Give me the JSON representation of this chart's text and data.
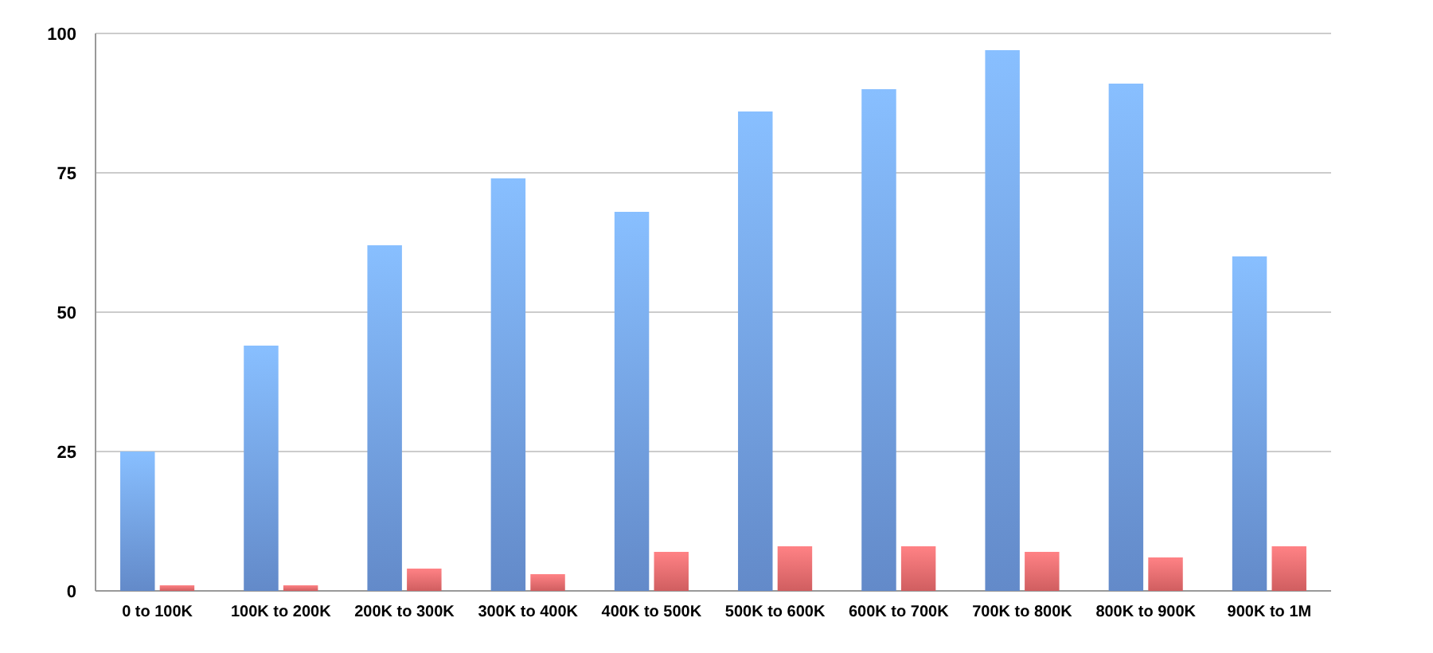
{
  "chart_data": {
    "type": "bar",
    "categories": [
      "0 to 100K",
      "100K to 200K",
      "200K to 300K",
      "300K to 400K",
      "400K to 500K",
      "500K to 600K",
      "600K to 700K",
      "700K to 800K",
      "800K to 900K",
      "900K to 1M"
    ],
    "series": [
      {
        "color": "#6e9ae0",
        "values": [
          25,
          44,
          62,
          74,
          68,
          86,
          90,
          97,
          91,
          60
        ]
      },
      {
        "color": "#e8696b",
        "values": [
          1,
          1,
          4,
          3,
          7,
          8,
          8,
          7,
          6,
          8
        ]
      }
    ],
    "ylim": [
      0,
      100
    ],
    "yticks": [
      0,
      25,
      50,
      75,
      100
    ],
    "grid": "y"
  }
}
